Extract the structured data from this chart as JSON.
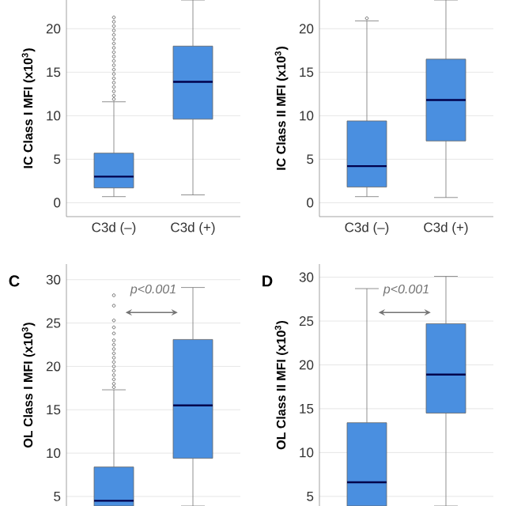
{
  "chart_data": [
    {
      "type": "box",
      "categories": [
        "C3d (–)",
        "C3d (+)"
      ],
      "ylabel": "IC Class I MFI (x10$^{3}$)",
      "ylim": [
        -1.6,
        23.3
      ],
      "yticks": [
        0,
        5,
        10,
        15,
        20
      ],
      "grid": "y",
      "color": "#4a8fe0",
      "boxes": [
        {
          "low": 0.7,
          "q1": 1.7,
          "median": 3.0,
          "q3": 5.7,
          "high": 11.6,
          "outliers": [
            11.9,
            12.3,
            12.8,
            13.3,
            13.8,
            14.3,
            14.8,
            15.3,
            15.8,
            16.3,
            16.8,
            17.3,
            17.8,
            18.3,
            18.8,
            19.3,
            19.8,
            20.3,
            20.8,
            21.3
          ]
        },
        {
          "low": 0.9,
          "q1": 9.6,
          "median": 13.9,
          "q3": 18.0,
          "high": 23.3
        }
      ]
    },
    {
      "type": "box",
      "categories": [
        "C3d (–)",
        "C3d (+)"
      ],
      "ylabel": "IC Class II MFI (x10$^{3}$)",
      "ylim": [
        -1.6,
        23.3
      ],
      "yticks": [
        0,
        5,
        10,
        15,
        20
      ],
      "grid": "y",
      "color": "#4a8fe0",
      "boxes": [
        {
          "low": 0.7,
          "q1": 1.8,
          "median": 4.2,
          "q3": 9.4,
          "high": 20.9,
          "outliers": [
            21.2
          ]
        },
        {
          "low": 0.6,
          "q1": 7.1,
          "median": 11.8,
          "q3": 16.5,
          "high": 23.3
        }
      ]
    },
    {
      "type": "box",
      "categories": [
        null,
        null
      ],
      "ylabel": "OL Class I MFI (x10$^{3}$)",
      "ylim": [
        3.9,
        31.8
      ],
      "yticks": [
        5,
        10,
        15,
        20,
        25,
        30
      ],
      "grid": "y",
      "color": "#4a8fe0",
      "tick_labels": "y",
      "annotations": [
        "C",
        "p<0.001"
      ],
      "boxes": [
        {
          "low": 3.9,
          "q1": 3.9,
          "median": 4.5,
          "q3": 8.4,
          "high": 17.3,
          "outliers": [
            17.6,
            18.0,
            18.5,
            19.0,
            19.5,
            20.0,
            20.5,
            21.0,
            21.5,
            22.0,
            22.5,
            23.0,
            23.8,
            24.5,
            25.3,
            27.0,
            28.2
          ]
        },
        {
          "low": 3.9,
          "q1": 9.4,
          "median": 15.5,
          "q3": 23.1,
          "high": 29.1
        }
      ]
    },
    {
      "type": "box",
      "categories": [
        null,
        null
      ],
      "ylabel": "OL Class II MFI (x10$^{3}$)",
      "ylim": [
        3.9,
        31.5
      ],
      "yticks": [
        5,
        10,
        15,
        20,
        25,
        30
      ],
      "grid": "y",
      "color": "#4a8fe0",
      "tick_labels": "y",
      "annotations": [
        "D",
        "p<0.001"
      ],
      "boxes": [
        {
          "low": 3.9,
          "q1": 3.9,
          "median": 6.6,
          "q3": 13.4,
          "high": 28.7
        },
        {
          "low": 3.9,
          "q1": 14.5,
          "median": 18.9,
          "q3": 24.7,
          "high": 30.1
        }
      ]
    }
  ]
}
